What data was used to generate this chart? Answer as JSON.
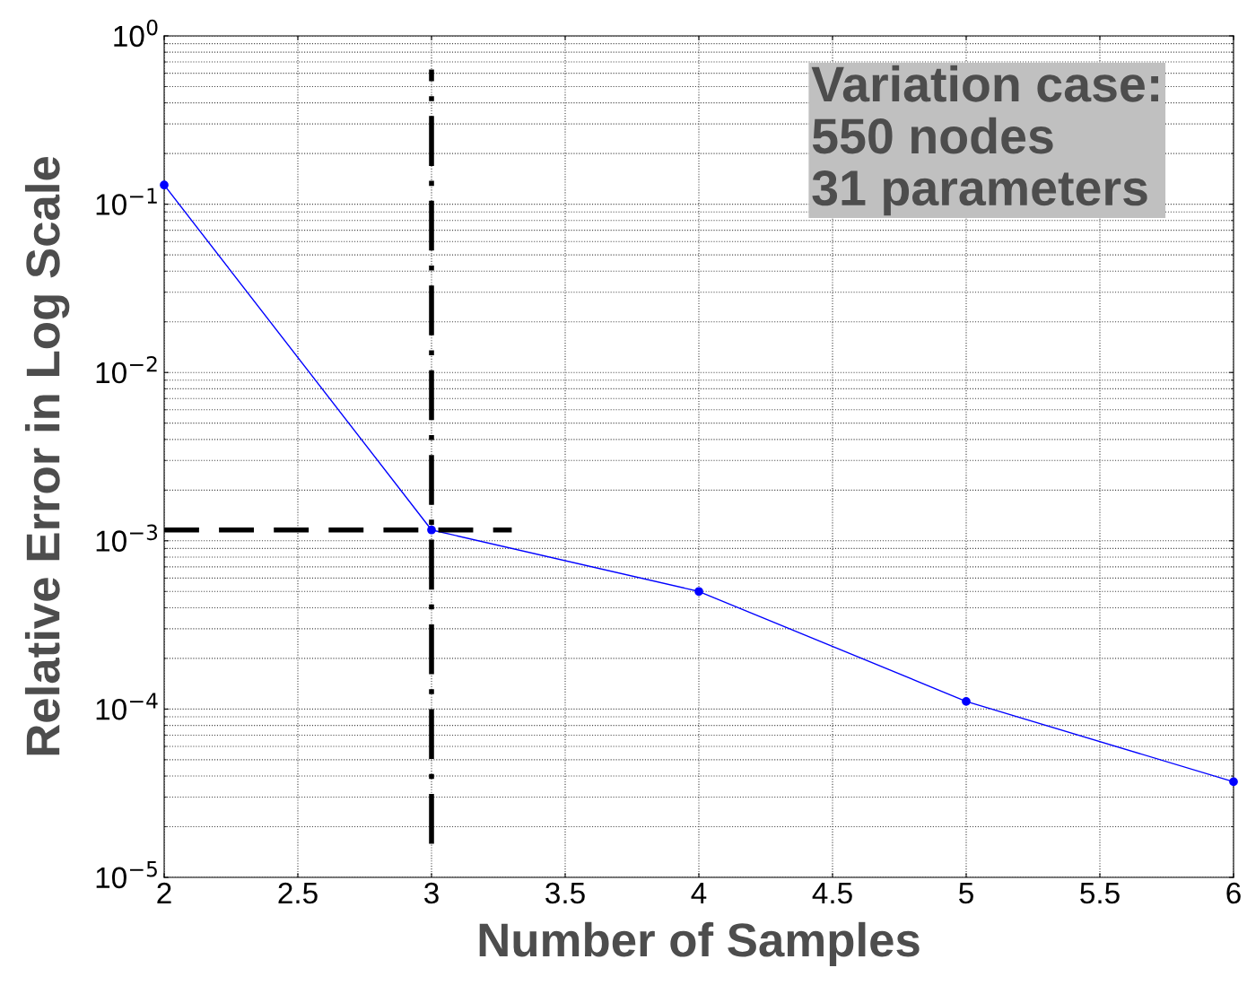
{
  "chart_data": {
    "type": "line",
    "xlabel": "Number of Samples",
    "ylabel": "Relative Error in Log Scale",
    "x": [
      2,
      3,
      4,
      5,
      6
    ],
    "series": [
      {
        "color": "#0000ff",
        "values": [
          0.13,
          0.00116,
          0.0005,
          0.000111,
          3.7e-05
        ],
        "marker": "circle",
        "line_style": "solid"
      },
      {
        "type": "line",
        "x": [
          2,
          3.3
        ],
        "color": "#000000",
        "values": [
          0.00116,
          0.00116
        ],
        "marker": "none",
        "line_style": "dashed"
      }
    ],
    "ref_lines": [
      {
        "axis": "x",
        "value": 3,
        "label": null,
        "color": "#000000",
        "line_style": "dashdot"
      }
    ],
    "log": "y",
    "grid": true,
    "xlim": [
      2,
      6
    ],
    "xticks": [
      2,
      2.5,
      3,
      3.5,
      4,
      4.5,
      5,
      5.5,
      6
    ],
    "ylim": [
      1e-05,
      1
    ],
    "yticks": [
      {
        "value": 1e-05,
        "label": "10$^{−5}$"
      },
      {
        "value": 0.0001,
        "label": "10$^{−4}$"
      },
      {
        "value": 0.001,
        "label": "10$^{−3}$"
      },
      {
        "value": 0.01,
        "label": "10$^{−2}$"
      },
      {
        "value": 0.1,
        "label": "10$^{−1}$"
      },
      {
        "value": 1,
        "label": "10$^{0}$"
      }
    ],
    "annotations": [
      "Variation case:\n550 nodes\n31 parameters"
    ]
  }
}
